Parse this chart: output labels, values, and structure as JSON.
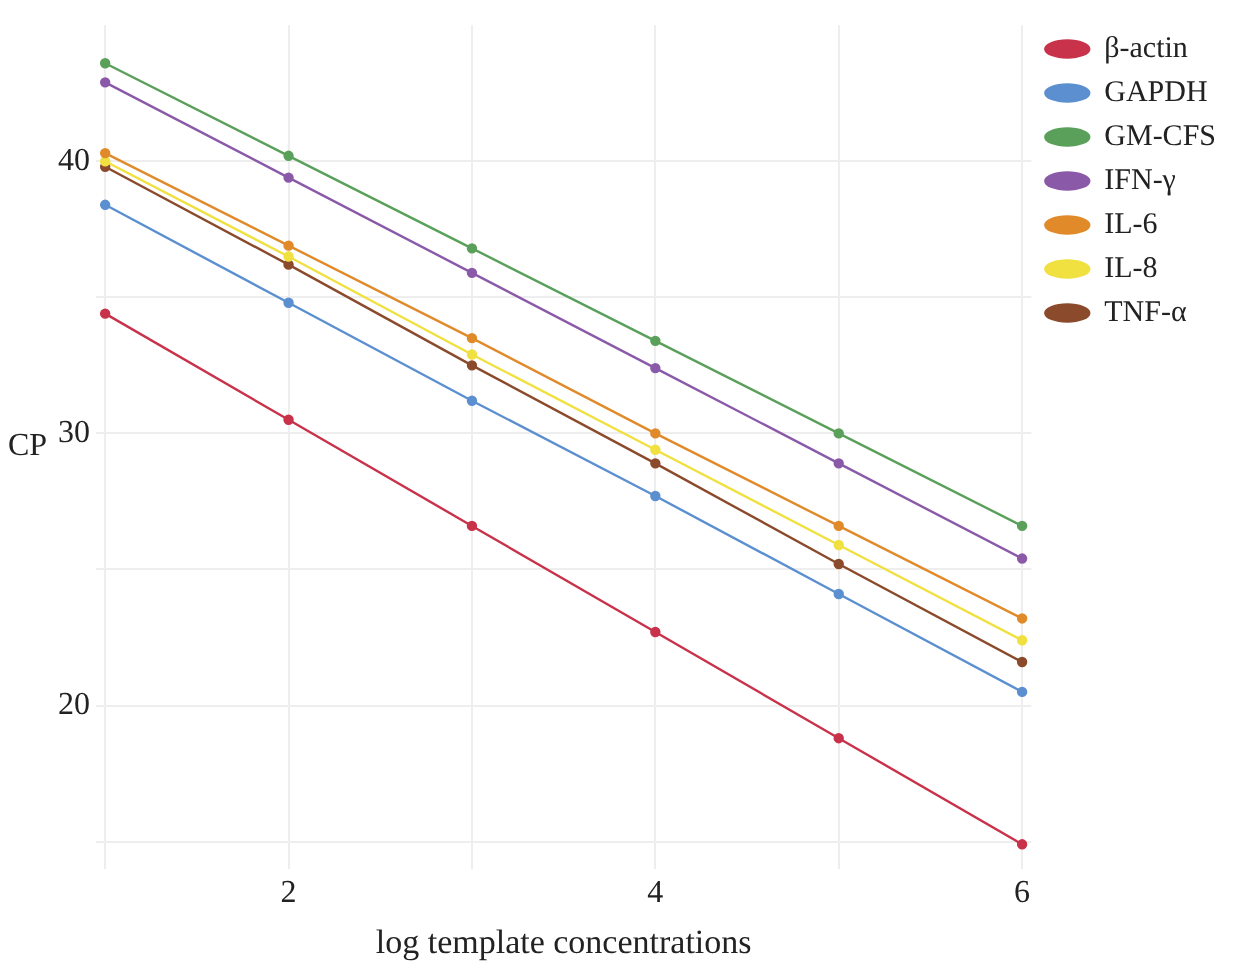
{
  "chart_data": {
    "type": "line",
    "xlabel": "log template concentrations",
    "ylabel": "CP",
    "x": [
      1,
      2,
      3,
      4,
      5,
      6
    ],
    "series": [
      {
        "name": "β-actin",
        "color": "#c8324a",
        "values": [
          34.4,
          30.5,
          26.6,
          22.7,
          18.8,
          14.9
        ]
      },
      {
        "name": "GAPDH",
        "color": "#5b8fd0",
        "values": [
          38.4,
          34.8,
          31.2,
          27.7,
          24.1,
          20.5
        ]
      },
      {
        "name": "GM-CFS",
        "color": "#5aa05a",
        "values": [
          43.6,
          40.2,
          36.8,
          33.4,
          30.0,
          26.6
        ]
      },
      {
        "name": "IFN-γ",
        "color": "#8a5aa8",
        "values": [
          42.9,
          39.4,
          35.9,
          32.4,
          28.9,
          25.4
        ]
      },
      {
        "name": "IL-6",
        "color": "#e08a2a",
        "values": [
          40.3,
          36.9,
          33.5,
          30.0,
          26.6,
          23.2
        ]
      },
      {
        "name": "IL-8",
        "color": "#f0e040",
        "values": [
          40.0,
          36.5,
          32.9,
          29.4,
          25.9,
          22.4
        ]
      },
      {
        "name": "TNF-α",
        "color": "#8b4a2b",
        "values": [
          39.8,
          36.2,
          32.5,
          28.9,
          25.2,
          21.6
        ]
      }
    ],
    "xlim": [
      0.95,
      6.05
    ],
    "xticks": [
      {
        "value": 1,
        "label": null
      },
      2,
      {
        "value": 3,
        "label": null
      },
      4,
      {
        "value": 5,
        "label": null
      },
      6
    ],
    "ylim": [
      14,
      45
    ],
    "yticks": [
      {
        "value": 15,
        "label": null
      },
      20,
      {
        "value": 25,
        "label": null
      },
      30,
      {
        "value": 35,
        "label": null
      },
      40
    ],
    "grid": true,
    "legend": "right",
    "marker": "circle",
    "line_style": "solid"
  }
}
